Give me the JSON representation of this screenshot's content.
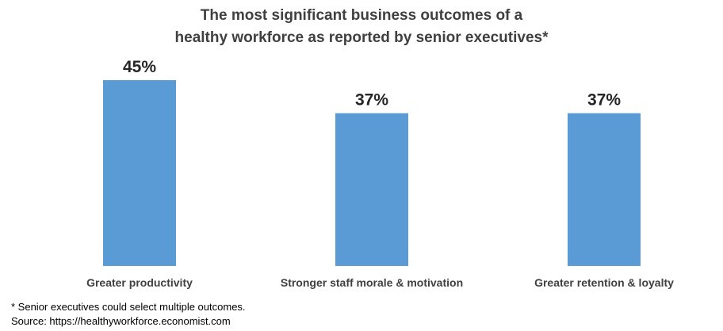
{
  "chart_data": {
    "type": "bar",
    "title_lines": [
      "The most significant business outcomes of a",
      "healthy workforce as reported by senior executives*"
    ],
    "categories": [
      "Greater productivity",
      "Stronger staff morale & motivation",
      "Greater retention & loyalty"
    ],
    "values": [
      45,
      37,
      37
    ],
    "value_labels": [
      "45%",
      "37%",
      "37%"
    ],
    "unit": "%",
    "ylim": [
      0,
      45
    ],
    "grid": false,
    "legend": "none",
    "bar_color": "#5B9BD5"
  },
  "footnotes": {
    "note": "* Senior executives could select multiple outcomes.",
    "source": "Source: https://healthyworkforce.economist.com"
  }
}
